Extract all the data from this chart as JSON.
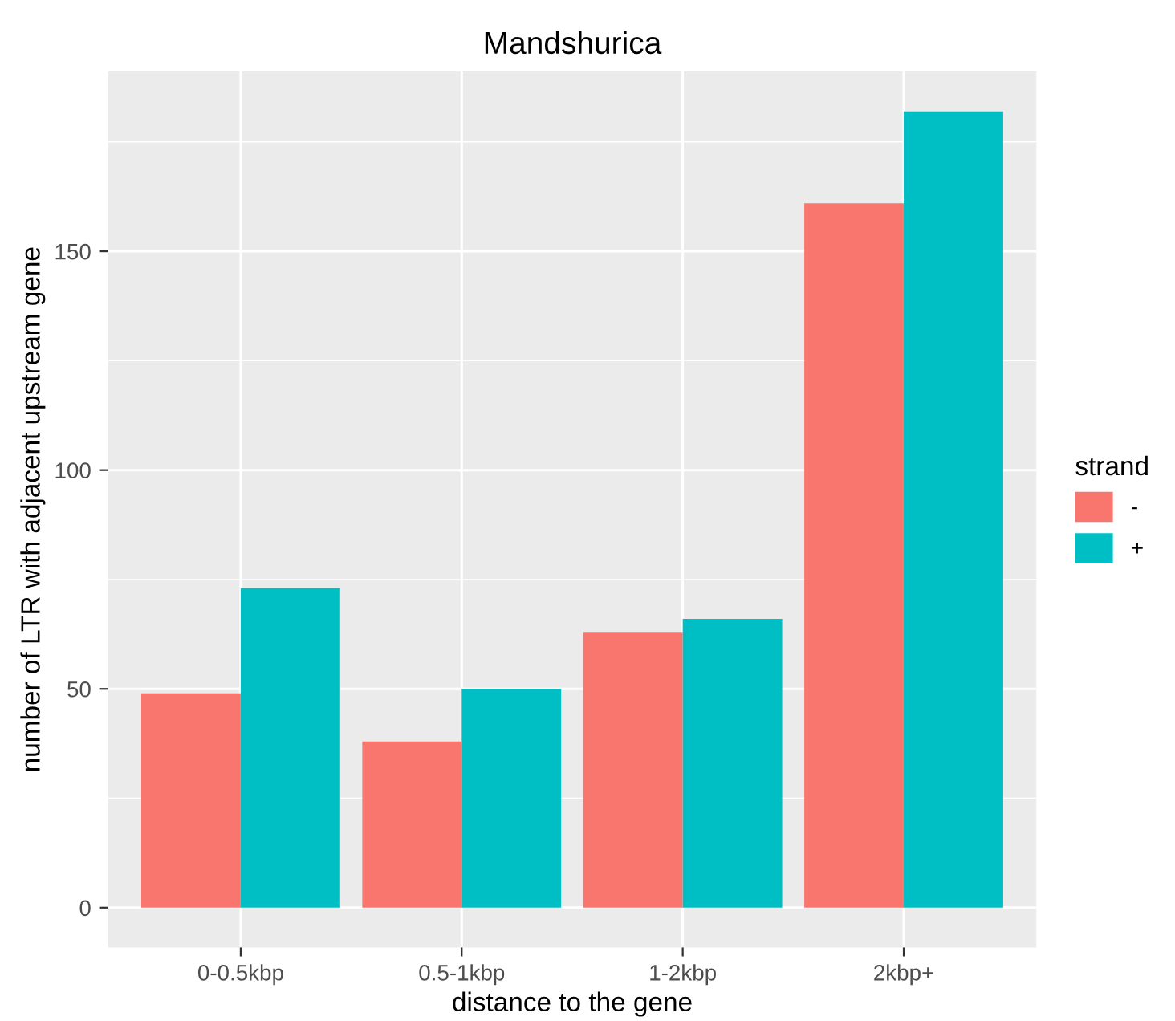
{
  "chart_data": {
    "type": "bar",
    "title": "Mandshurica",
    "xlabel": "distance to the gene",
    "ylabel": "number of LTR with adjacent upstream gene",
    "categories": [
      "0-0.5kbp",
      "0.5-1kbp",
      "1-2kbp",
      "2kbp+"
    ],
    "series": [
      {
        "name": "-",
        "color": "#f8766d",
        "values": [
          49,
          38,
          63,
          161
        ]
      },
      {
        "name": "+",
        "color": "#00bfc4",
        "values": [
          73,
          50,
          66,
          182
        ]
      }
    ],
    "legend_title": "strand",
    "legend": "right",
    "ylim": [
      -9.1,
      191.1
    ],
    "yticks": [
      0,
      50,
      100,
      150
    ],
    "grid": true
  }
}
